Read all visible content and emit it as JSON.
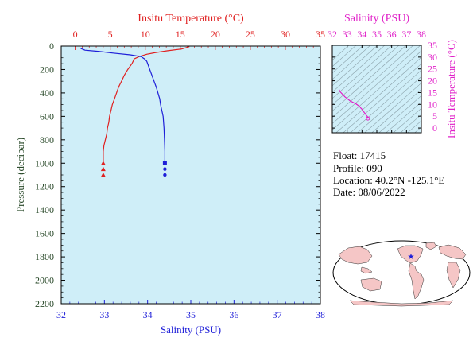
{
  "colors": {
    "plot_bg": "#cfeef8",
    "temperature": "#e02020",
    "salinity": "#1e1ed8",
    "ts_accent": "#e020c8",
    "pressure_axis": "#2a4a2a",
    "float_marker": "#1e1ed8",
    "land": "#f5c6c6",
    "ocean": "#ffffff"
  },
  "info": {
    "float": "Float:  17415",
    "profile": "Profile:  090",
    "location": "Location:  40.2°N  -125.1°E",
    "date": "Date:  08/06/2022"
  },
  "map": {
    "icon": "world-map-icon",
    "float_lat": 40.2,
    "float_lon": -125.1
  },
  "chart_data": [
    {
      "type": "line",
      "xlabel_top": "Insitu Temperature (°C)",
      "xlabel_bottom": "Salinity (PSU)",
      "ylabel": "Pressure (decibar)",
      "temp_lim": [
        -2,
        35
      ],
      "sal_lim": [
        32,
        38
      ],
      "ylim": [
        0,
        2200
      ],
      "y_inverted": true,
      "grid": false,
      "temp_ticks": [
        0,
        5,
        10,
        15,
        20,
        25,
        30,
        35
      ],
      "sal_ticks": [
        32,
        33,
        34,
        35,
        36,
        37,
        38
      ],
      "pressure_ticks": [
        0,
        200,
        400,
        600,
        800,
        1000,
        1200,
        1400,
        1600,
        1800,
        2000,
        2200
      ],
      "series": [
        {
          "axis": "temperature",
          "x": [
            16.3,
            15.2,
            13.2,
            11.5,
            10.2,
            9.1,
            8.4,
            8.3,
            8.1,
            7.5,
            7.0,
            6.6,
            6.2,
            5.9,
            5.6,
            5.3,
            5.1,
            4.9,
            4.8,
            4.6,
            4.5,
            4.3,
            4.1,
            4.0,
            4.0
          ],
          "y": [
            5,
            25,
            40,
            55,
            70,
            90,
            110,
            125,
            150,
            200,
            250,
            300,
            350,
            400,
            450,
            500,
            550,
            600,
            650,
            700,
            750,
            800,
            850,
            900,
            1000
          ]
        },
        {
          "axis": "salinity",
          "x": [
            32.45,
            32.55,
            32.85,
            33.2,
            33.6,
            33.85,
            33.93,
            33.98,
            34.02,
            34.05,
            34.1,
            34.15,
            34.2,
            34.24,
            34.28,
            34.3,
            34.33,
            34.36,
            34.38,
            34.39,
            34.4,
            34.4
          ],
          "y": [
            20,
            35,
            45,
            60,
            75,
            90,
            110,
            130,
            170,
            200,
            250,
            300,
            350,
            400,
            450,
            500,
            550,
            600,
            700,
            800,
            900,
            1000
          ]
        }
      ],
      "bottom_markers": {
        "temperature": {
          "x": [
            4.0,
            4.0,
            4.0
          ],
          "y": [
            1000,
            1050,
            1100
          ]
        },
        "salinity": {
          "x": [
            34.4,
            34.4,
            34.4
          ],
          "y": [
            1000,
            1050,
            1100
          ]
        }
      }
    },
    {
      "type": "scatter",
      "xlabel": "Salinity (PSU)",
      "ylabel": "Insitu Temperature (°C)",
      "xlim": [
        32,
        38
      ],
      "ylim": [
        -2,
        35
      ],
      "x_ticks": [
        32,
        33,
        34,
        35,
        36,
        37,
        38
      ],
      "y_ticks": [
        0,
        5,
        10,
        15,
        20,
        25,
        30,
        35
      ],
      "x": [
        32.45,
        32.55,
        32.85,
        33.2,
        33.6,
        33.85,
        33.93,
        33.98,
        34.05,
        34.15,
        34.24,
        34.3,
        34.36,
        34.39,
        34.4
      ],
      "y": [
        16.3,
        15.2,
        13.2,
        11.5,
        10.2,
        9.1,
        8.4,
        8.1,
        7.5,
        6.6,
        5.9,
        5.3,
        4.9,
        4.5,
        4.0
      ]
    }
  ]
}
